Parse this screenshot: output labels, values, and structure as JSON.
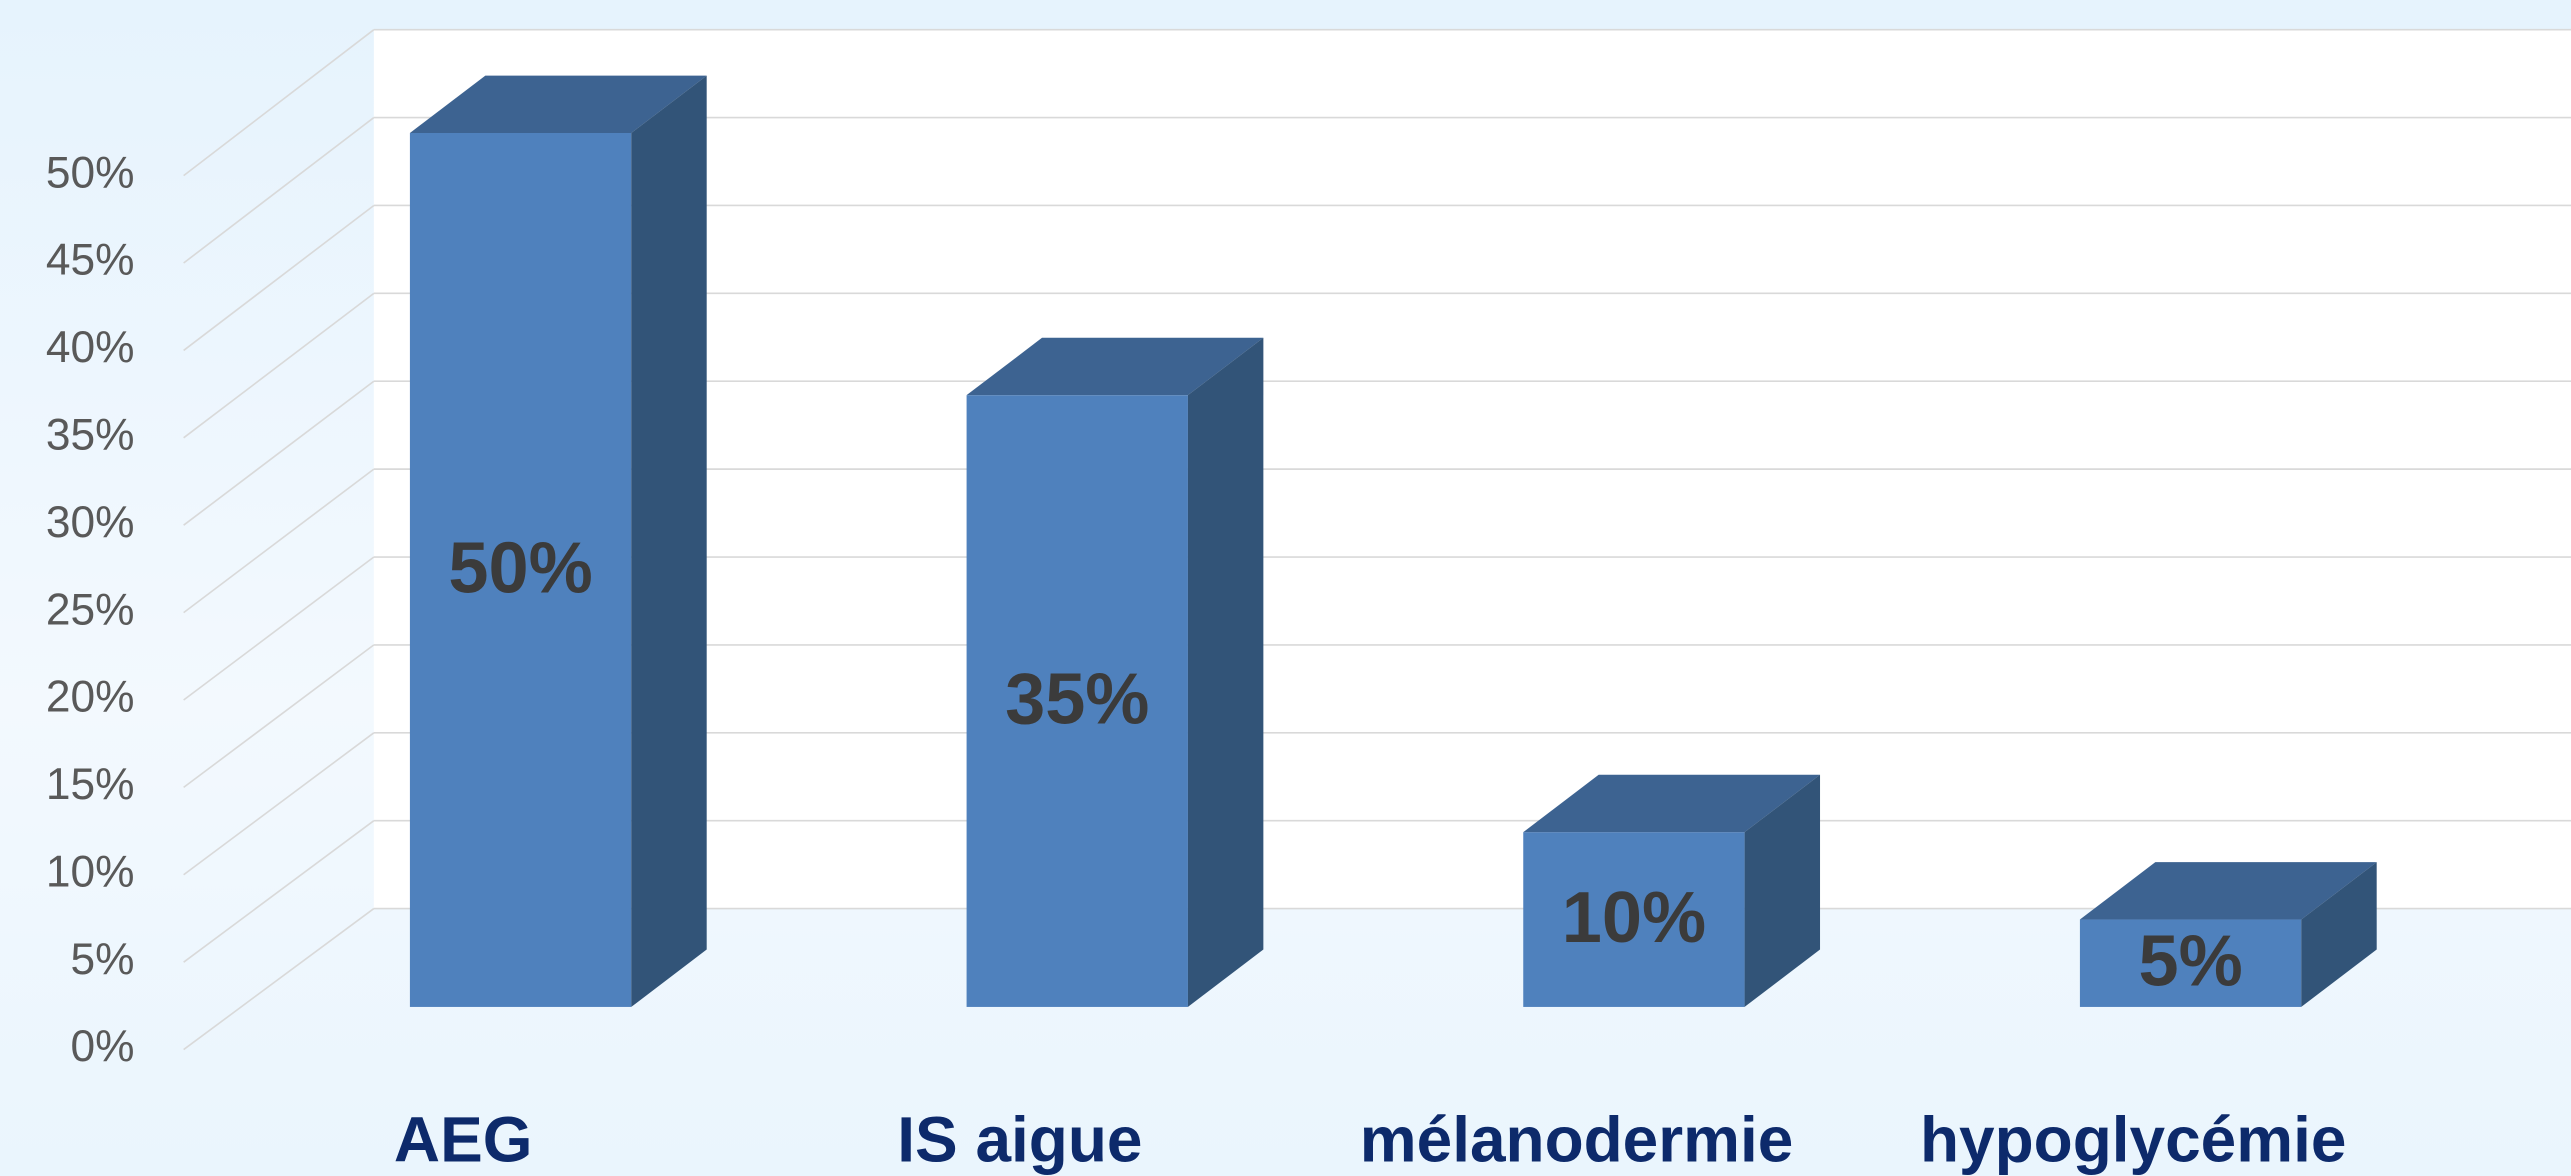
{
  "chart_data": {
    "type": "bar3d",
    "categories": [
      "AEG",
      "IS aigue",
      "mélanodermie",
      "hypoglycémie"
    ],
    "values": [
      50,
      35,
      10,
      5
    ],
    "value_labels": [
      "50%",
      "35%",
      "10%",
      "5%"
    ],
    "color": "#4f81bd",
    "ylim": [
      0,
      50
    ],
    "yticks": [
      {
        "value": 0,
        "label": "0%"
      },
      {
        "value": 5,
        "label": "5%"
      },
      {
        "value": 10,
        "label": "10%"
      },
      {
        "value": 15,
        "label": "15%"
      },
      {
        "value": 20,
        "label": "20%"
      },
      {
        "value": 25,
        "label": "25%"
      },
      {
        "value": 30,
        "label": "30%"
      },
      {
        "value": 35,
        "label": "35%"
      },
      {
        "value": 40,
        "label": "40%"
      },
      {
        "value": 45,
        "label": "45%"
      },
      {
        "value": 50,
        "label": "50%"
      }
    ],
    "grid": true
  }
}
